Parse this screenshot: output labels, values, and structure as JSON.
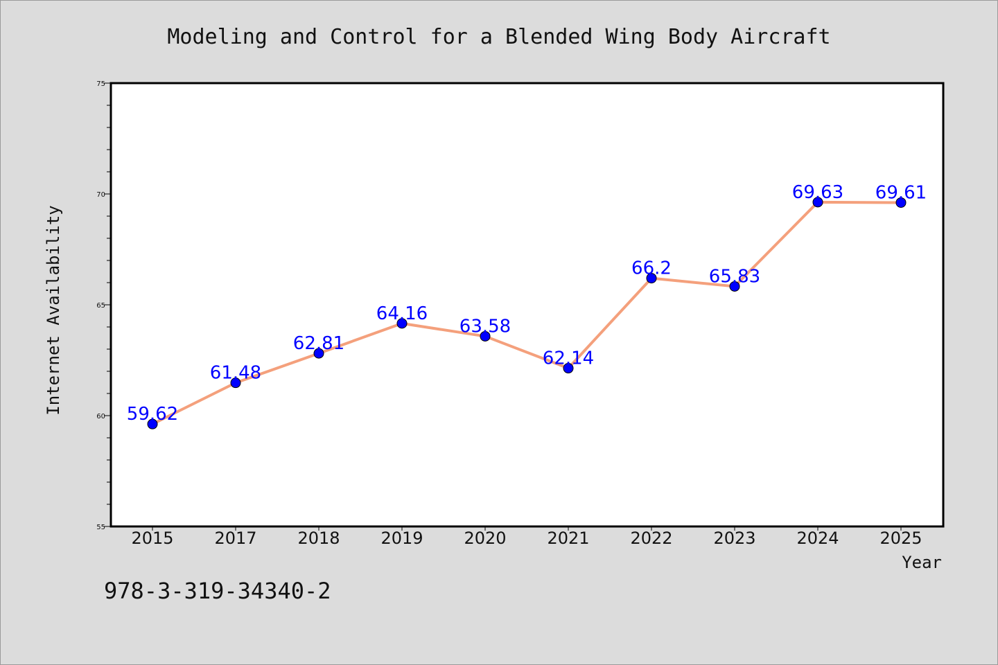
{
  "chart_data": {
    "type": "line",
    "title": "Modeling and Control for a Blended Wing Body Aircraft",
    "xlabel": "Year",
    "ylabel": "Internet Availability",
    "categories": [
      "2015",
      "2017",
      "2018",
      "2019",
      "2020",
      "2021",
      "2022",
      "2023",
      "2024",
      "2025"
    ],
    "series": [
      {
        "values": [
          59.62,
          61.48,
          62.81,
          64.16,
          63.58,
          62.14,
          66.2,
          65.83,
          69.63,
          69.61
        ],
        "labels": [
          "59.62",
          "61.48",
          "62.81",
          "64.16",
          "63.58",
          "62.14",
          "66.2",
          "65.83",
          "69.63",
          "69.61"
        ],
        "line_color": "#f4a07c",
        "marker_color": "#0000ff"
      }
    ],
    "ylim": [
      55,
      75
    ],
    "yticks": [
      "55",
      "60",
      "65",
      "70",
      "75"
    ],
    "grid": false,
    "legend": "none"
  },
  "footer": {
    "isbn": "978-3-319-34340-2"
  },
  "colors": {
    "background": "#dcdcdc",
    "plot_area": "#ffffff",
    "line": "#f4a07c",
    "marker": "#0000ff",
    "data_label": "#0000ff"
  }
}
